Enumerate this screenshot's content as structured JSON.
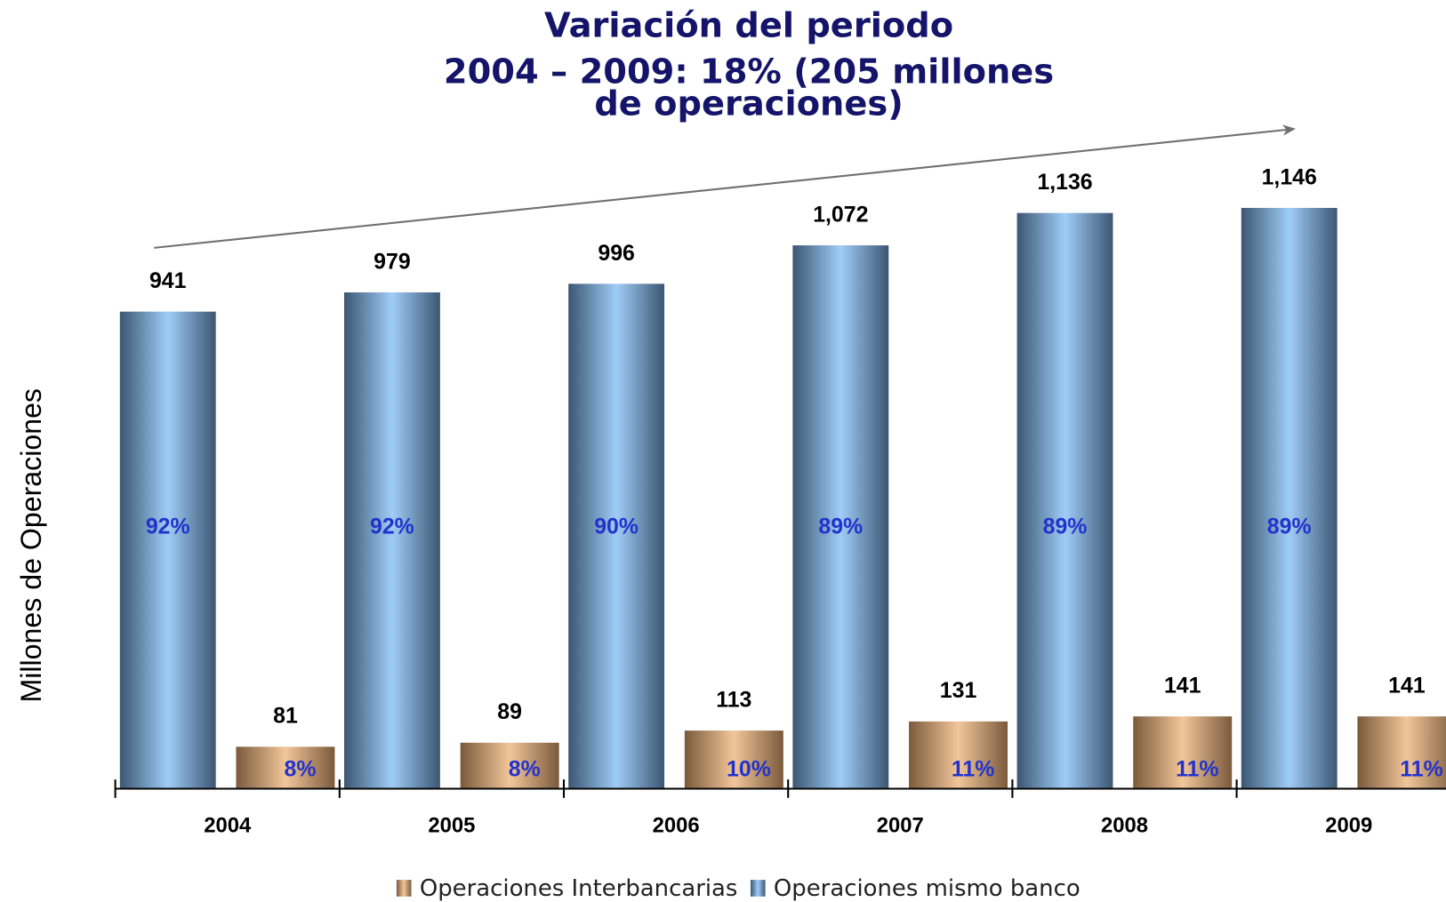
{
  "chart_data": {
    "type": "bar",
    "title": [
      "Variación del periodo",
      "2004 – 2009: 18% (205 millones",
      "de operaciones)"
    ],
    "y_label": "Millones de Operaciones",
    "categories": [
      "2004",
      "2005",
      "2006",
      "2007",
      "2008",
      "2009"
    ],
    "ylim": [
      0,
      1200
    ],
    "series": [
      {
        "name": "Operaciones Interbancarias",
        "color": "#f3c699",
        "values": [
          81,
          89,
          113,
          131,
          141,
          141
        ],
        "share_labels": [
          "8%",
          "8%",
          "10%",
          "11%",
          "11%",
          "11%"
        ]
      },
      {
        "name": "Operaciones mismo banco",
        "color": "#9fcdf8",
        "values": [
          941,
          979,
          996,
          1072,
          1136,
          1146
        ],
        "value_labels": [
          "941",
          "979",
          "996",
          "1,072",
          "1,136",
          "1,146"
        ],
        "share_labels": [
          "92%",
          "92%",
          "90%",
          "89%",
          "89%",
          "89%"
        ]
      }
    ],
    "legend": "bottom"
  }
}
